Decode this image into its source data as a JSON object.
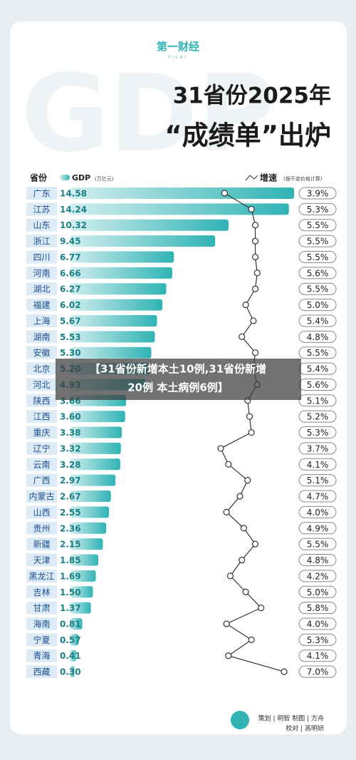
{
  "header": {
    "logo": "第一财经",
    "logo_sub": "YICAI",
    "watermark": "GDP",
    "title_line1": "31省份2025年",
    "title_line2": "“成绩单”出炉"
  },
  "column_headers": {
    "province": "省份",
    "gdp_note": "(万亿元)",
    "growth_note": "(按不变价格计算)"
  },
  "chart_data": {
    "type": "bar",
    "categories": [
      "广东",
      "江苏",
      "山东",
      "浙江",
      "四川",
      "河南",
      "湖北",
      "福建",
      "上海",
      "湖南",
      "安徽",
      "北京",
      "河北",
      "陕西",
      "江西",
      "重庆",
      "辽宁",
      "云南",
      "广西",
      "内蒙古",
      "山西",
      "贵州",
      "新疆",
      "天津",
      "黑龙江",
      "吉林",
      "甘肃",
      "海南",
      "宁夏",
      "青海",
      "西藏"
    ],
    "series": [
      {
        "name": "GDP",
        "color": "#2fb3b5",
        "values": [
          14.58,
          14.24,
          10.32,
          9.45,
          6.77,
          6.66,
          6.27,
          6.02,
          5.67,
          5.53,
          5.3,
          5.2,
          4.93,
          3.66,
          3.6,
          3.38,
          3.32,
          3.28,
          2.97,
          2.67,
          2.55,
          2.36,
          2.15,
          1.85,
          1.69,
          1.5,
          1.37,
          0.81,
          0.57,
          0.41,
          0.3
        ],
        "value_labels": [
          "14.58",
          "14.24",
          "10.32",
          "9.45",
          "6.77",
          "6.66",
          "6.27",
          "6.02",
          "5.67",
          "5.53",
          "5.30",
          "5.20",
          "4.93",
          "3.66",
          "3.60",
          "3.38",
          "3.32",
          "3.28",
          "2.97",
          "2.67",
          "2.55",
          "2.36",
          "2.15",
          "1.85",
          "1.69",
          "1.50",
          "1.37",
          "0.81",
          "0.57",
          "0.41",
          "0.30"
        ]
      },
      {
        "name": "增速",
        "color": "#333333",
        "type": "line",
        "values": [
          3.9,
          5.3,
          5.5,
          5.5,
          5.5,
          5.6,
          5.5,
          5.0,
          5.4,
          4.8,
          5.5,
          5.4,
          5.6,
          5.1,
          5.2,
          5.3,
          3.7,
          4.1,
          5.1,
          4.7,
          4.0,
          4.9,
          5.5,
          4.8,
          4.2,
          5.0,
          5.8,
          4.0,
          5.3,
          4.1,
          7.0
        ],
        "value_labels": [
          "3.9%",
          "5.3%",
          "5.5%",
          "5.5%",
          "5.5%",
          "5.6%",
          "5.5%",
          "5.0%",
          "5.4%",
          "4.8%",
          "5.5%",
          "5.4%",
          "5.6%",
          "5.1%",
          "5.2%",
          "5.3%",
          "3.7%",
          "4.1%",
          "5.1%",
          "4.7%",
          "4.0%",
          "4.9%",
          "5.5%",
          "4.8%",
          "4.2%",
          "5.0%",
          "5.8%",
          "4.0%",
          "5.3%",
          "4.1%",
          "7.0%"
        ]
      }
    ]
  },
  "overlay": {
    "line1": "【31省份新增本土10例,31省份新增",
    "line2": "20例 本土病例6例】"
  },
  "footer": {
    "credits1": "策划 | 明智  制图 | 方舟",
    "credits2": "校对 | 高明妍"
  }
}
